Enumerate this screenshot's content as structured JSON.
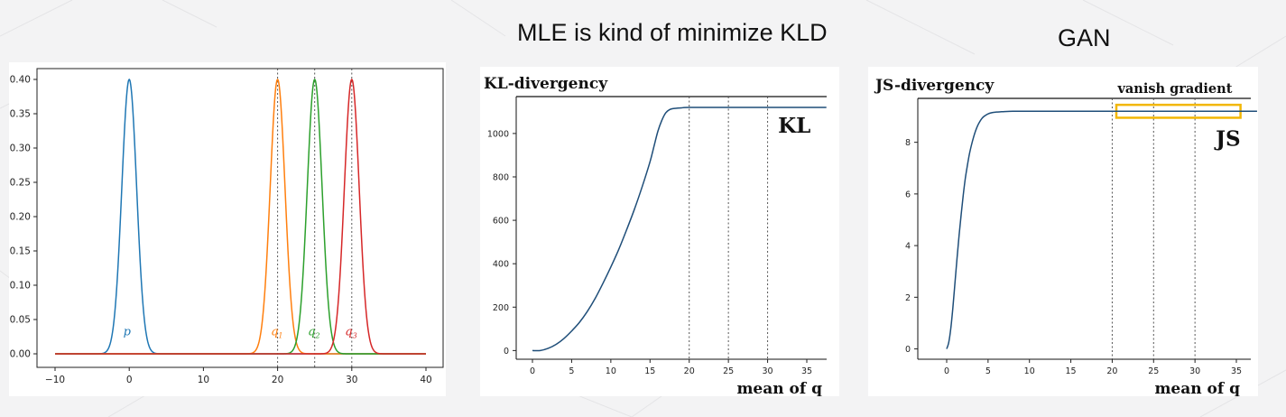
{
  "slide": {
    "heading_center": "MLE is kind of minimize KLD",
    "heading_right": "GAN"
  },
  "chart_data": [
    {
      "type": "line",
      "title": "",
      "xlabel": "",
      "ylabel": "",
      "xlim": [
        -10,
        40
      ],
      "ylim": [
        0,
        0.4
      ],
      "xticks": [
        -10,
        0,
        10,
        20,
        30,
        40
      ],
      "xtick_labels": [
        "−10",
        "0",
        "10",
        "20",
        "30",
        "40"
      ],
      "yticks": [
        0.0,
        0.05,
        0.1,
        0.15,
        0.2,
        0.25,
        0.3,
        0.35,
        0.4
      ],
      "ytick_labels": [
        "0.00",
        "0.05",
        "0.10",
        "0.15",
        "0.20",
        "0.25",
        "0.30",
        "0.35",
        "0.40"
      ],
      "vlines": [
        20,
        25,
        30
      ],
      "grid": false,
      "series": [
        {
          "label": "p",
          "mean": 0,
          "sd": 1,
          "peak": 0.4,
          "x_range": [
            -10,
            40
          ],
          "color": "#1f77b4"
        },
        {
          "label": "q1",
          "mean": 20,
          "sd": 1,
          "peak": 0.4,
          "x_range": [
            -10,
            40
          ],
          "color": "#ff7f0e"
        },
        {
          "label": "q2",
          "mean": 25,
          "sd": 1,
          "peak": 0.4,
          "x_range": [
            -10,
            40
          ],
          "color": "#2ca02c"
        },
        {
          "label": "q3",
          "mean": 30,
          "sd": 1,
          "peak": 0.4,
          "x_range": [
            -10,
            40
          ],
          "color": "#d62728"
        }
      ],
      "annotations": [
        {
          "text": "p",
          "x": -0.3,
          "y": 0.027,
          "color": "#1f77b4"
        },
        {
          "text": "q",
          "sub": "1",
          "x": 19.9,
          "y": 0.027,
          "color": "#ff7f0e"
        },
        {
          "text": "q",
          "sub": "2",
          "x": 24.9,
          "y": 0.027,
          "color": "#2ca02c"
        },
        {
          "text": "q",
          "sub": "3",
          "x": 29.9,
          "y": 0.027,
          "color": "#d62728"
        }
      ]
    },
    {
      "type": "line",
      "title": "KL-divergency",
      "xlabel": "mean of q",
      "ylabel": "",
      "xlim": [
        -1.5,
        37.5
      ],
      "ylim": [
        -40,
        1170
      ],
      "xticks": [
        0,
        5,
        10,
        15,
        20,
        25,
        30,
        35
      ],
      "xtick_labels": [
        "0",
        "5",
        "10",
        "15",
        "20",
        "25",
        "30",
        "35"
      ],
      "yticks": [
        0,
        200,
        400,
        600,
        800,
        1000
      ],
      "ytick_labels": [
        "0",
        "200",
        "400",
        "600",
        "800",
        "1000"
      ],
      "vlines": [
        20,
        25,
        30
      ],
      "grid": false,
      "series": [
        {
          "label": "KL",
          "color": "#1f4e79",
          "x": [
            0,
            1,
            2,
            3,
            4,
            5,
            6,
            7,
            8,
            9,
            10,
            11,
            12,
            13,
            14,
            15,
            15.5,
            16,
            16.5,
            17,
            17.5,
            18,
            19,
            20,
            25,
            30,
            37.5
          ],
          "y": [
            0,
            0,
            10,
            28,
            55,
            90,
            130,
            180,
            240,
            310,
            385,
            465,
            555,
            650,
            755,
            870,
            940,
            1010,
            1060,
            1095,
            1110,
            1115,
            1118,
            1120,
            1120,
            1120,
            1120
          ]
        }
      ],
      "annotations": [
        {
          "text": "KL",
          "x": 35.5,
          "y": 1020
        }
      ]
    },
    {
      "type": "line",
      "title": "JS-divergency",
      "xlabel": "mean of q",
      "ylabel": "",
      "xlim": [
        -1.5,
        37.5
      ],
      "ylim": [
        -0.4,
        9.7
      ],
      "xticks": [
        0,
        5,
        10,
        15,
        20,
        25,
        30,
        35
      ],
      "xtick_labels": [
        "0",
        "5",
        "10",
        "15",
        "20",
        "25",
        "30",
        "35"
      ],
      "yticks": [
        0,
        2,
        4,
        6,
        8
      ],
      "ytick_labels": [
        "0",
        "2",
        "4",
        "6",
        "8"
      ],
      "vlines": [
        20,
        25,
        30
      ],
      "grid": false,
      "series": [
        {
          "label": "JS",
          "color": "#1f4e79",
          "x": [
            0,
            0.25,
            0.5,
            0.75,
            1,
            1.25,
            1.5,
            1.75,
            2,
            2.25,
            2.5,
            2.75,
            3,
            3.25,
            3.5,
            3.75,
            4,
            4.25,
            4.5,
            5,
            5.5,
            6,
            6.5,
            7,
            8,
            9,
            10,
            15,
            20,
            25,
            30,
            37.5
          ],
          "y": [
            0,
            0.25,
            0.8,
            1.6,
            2.55,
            3.5,
            4.4,
            5.2,
            5.95,
            6.6,
            7.1,
            7.55,
            7.9,
            8.2,
            8.45,
            8.65,
            8.8,
            8.92,
            9.0,
            9.1,
            9.15,
            9.17,
            9.18,
            9.19,
            9.2,
            9.2,
            9.2,
            9.2,
            9.2,
            9.2,
            9.2,
            9.2
          ]
        }
      ],
      "annotations": [
        {
          "text": "JS",
          "x": 35.5,
          "y": 8.0
        },
        {
          "text": "vanish gradient",
          "x": 34.5,
          "y": 10.2
        }
      ],
      "highlight_box": {
        "x_range": [
          20.5,
          35.5
        ],
        "y_range": [
          8.95,
          9.45
        ],
        "color": "#f2b705"
      }
    }
  ]
}
